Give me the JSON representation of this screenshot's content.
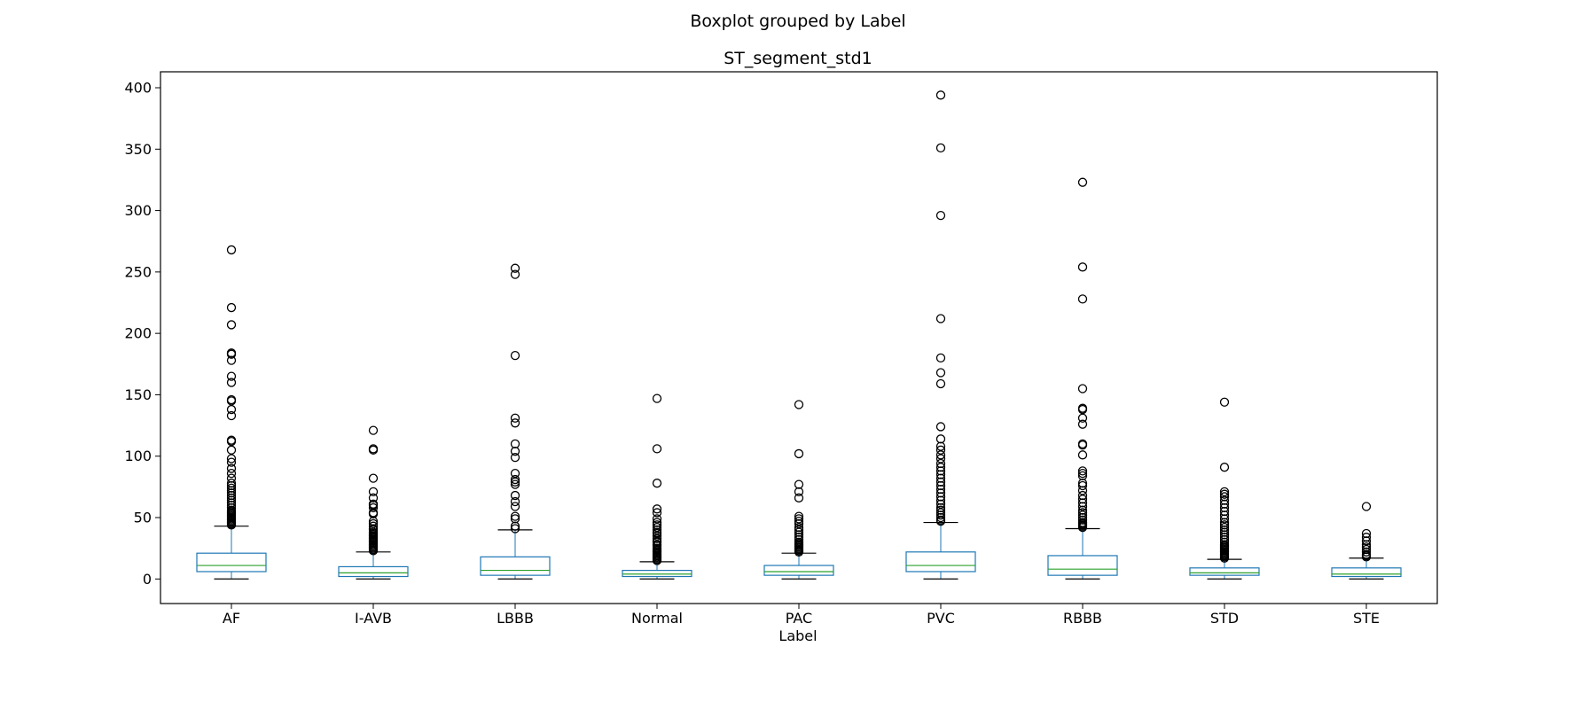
{
  "chart_data": {
    "type": "boxplot",
    "suptitle": "Boxplot grouped by Label",
    "title": "ST_segment_std1",
    "xlabel": "Label",
    "ylabel": "",
    "ylim": [
      -20,
      413
    ],
    "yticks": [
      0,
      50,
      100,
      150,
      200,
      250,
      300,
      350,
      400
    ],
    "grid": false,
    "colors": {
      "box": "#1f77b4",
      "median": "#2ca02c",
      "whisker_cap": "#000000",
      "flier": "#000000"
    },
    "categories": [
      "AF",
      "I-AVB",
      "LBBB",
      "Normal",
      "PAC",
      "PVC",
      "RBBB",
      "STD",
      "STE"
    ],
    "boxes": [
      {
        "label": "AF",
        "whislo": 0,
        "q1": 6,
        "med": 11,
        "q3": 21,
        "whishi": 43,
        "fliers": [
          268,
          221,
          207,
          184,
          183,
          178,
          165,
          160,
          146,
          145,
          138,
          133,
          113,
          112,
          105,
          98,
          95,
          90,
          86,
          82,
          78,
          76,
          74,
          72,
          70,
          68,
          66,
          64,
          62,
          60,
          58,
          56,
          55,
          54,
          53,
          52,
          51,
          50,
          49,
          48,
          47,
          46,
          45,
          44
        ]
      },
      {
        "label": "I-AVB",
        "whislo": 0,
        "q1": 2,
        "med": 5,
        "q3": 10,
        "whishi": 22,
        "fliers": [
          121,
          106,
          105,
          82,
          71,
          66,
          61,
          60,
          58,
          54,
          53,
          47,
          45,
          43,
          41,
          40,
          38,
          37,
          36,
          35,
          34,
          33,
          32,
          31,
          30,
          29,
          28,
          27,
          26,
          25,
          24,
          23
        ]
      },
      {
        "label": "LBBB",
        "whislo": 0,
        "q1": 3,
        "med": 7,
        "q3": 18,
        "whishi": 40,
        "fliers": [
          253,
          248,
          182,
          131,
          127,
          110,
          104,
          99,
          86,
          81,
          79,
          77,
          68,
          63,
          59,
          51,
          49,
          43,
          41
        ]
      },
      {
        "label": "Normal",
        "whislo": 0,
        "q1": 2,
        "med": 4,
        "q3": 7,
        "whishi": 14,
        "fliers": [
          147,
          106,
          78,
          57,
          54,
          49,
          46,
          44,
          42,
          40,
          38,
          37,
          35,
          33,
          31,
          30,
          28,
          27,
          25,
          24,
          23,
          22,
          21,
          20,
          19,
          18,
          17,
          16,
          15
        ]
      },
      {
        "label": "PAC",
        "whislo": 0,
        "q1": 3,
        "med": 6,
        "q3": 11,
        "whishi": 21,
        "fliers": [
          142,
          102,
          77,
          71,
          66,
          51,
          49,
          47,
          45,
          42,
          40,
          38,
          36,
          34,
          32,
          30,
          29,
          28,
          27,
          26,
          25,
          24,
          23,
          22
        ]
      },
      {
        "label": "PVC",
        "whislo": 0,
        "q1": 6,
        "med": 11,
        "q3": 22,
        "whishi": 46,
        "fliers": [
          394,
          351,
          296,
          212,
          180,
          168,
          159,
          124,
          114,
          108,
          105,
          101,
          98,
          94,
          91,
          88,
          85,
          82,
          79,
          76,
          73,
          70,
          67,
          64,
          61,
          58,
          56,
          54,
          52,
          50,
          48,
          47
        ]
      },
      {
        "label": "RBBB",
        "whislo": 0,
        "q1": 3,
        "med": 8,
        "q3": 19,
        "whishi": 41,
        "fliers": [
          323,
          254,
          228,
          155,
          139,
          138,
          131,
          126,
          110,
          109,
          101,
          88,
          86,
          84,
          78,
          76,
          72,
          68,
          65,
          62,
          59,
          56,
          54,
          52,
          50,
          48,
          46,
          45,
          44,
          43,
          42
        ]
      },
      {
        "label": "STD",
        "whislo": 0,
        "q1": 3,
        "med": 5,
        "q3": 9,
        "whishi": 16,
        "fliers": [
          144,
          91,
          71,
          69,
          67,
          64,
          61,
          58,
          55,
          52,
          49,
          46,
          44,
          42,
          40,
          38,
          36,
          34,
          32,
          30,
          28,
          27,
          26,
          25,
          24,
          23,
          22,
          21,
          20,
          19,
          18,
          17
        ]
      },
      {
        "label": "STE",
        "whislo": 0,
        "q1": 2,
        "med": 4,
        "q3": 9,
        "whishi": 17,
        "fliers": [
          59,
          37,
          34,
          31,
          28,
          26,
          24,
          22,
          20,
          19,
          18
        ]
      }
    ]
  }
}
